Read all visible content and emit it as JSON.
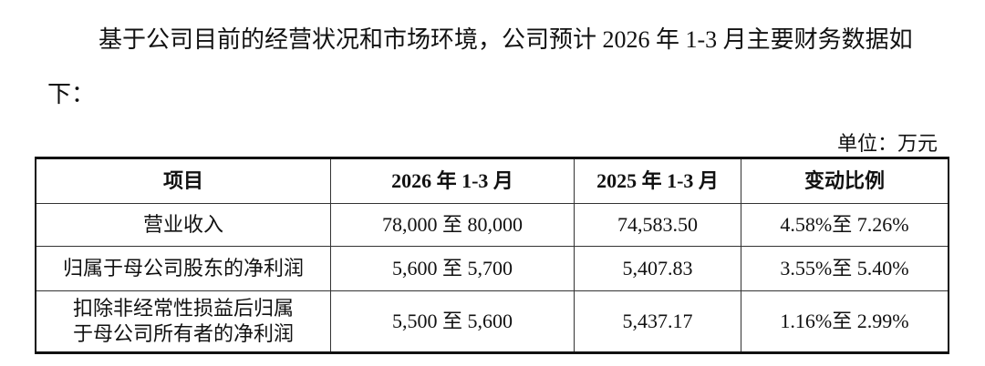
{
  "paragraph": "基于公司目前的经营状况和市场环境，公司预计 2026 年 1-3 月主要财务数据如下：",
  "unit": "单位：万元",
  "table": {
    "headers": [
      "项目",
      "2026 年 1-3 月",
      "2025 年 1-3 月",
      "变动比例"
    ],
    "rows": [
      [
        "营业收入",
        "78,000 至 80,000",
        "74,583.50",
        "4.58%至 7.26%"
      ],
      [
        "归属于母公司股东的净利润",
        "5,600 至 5,700",
        "5,407.83",
        "3.55%至 5.40%"
      ],
      [
        "扣除非经常性损益后归属于母公司所有者的净利润",
        "5,500 至 5,600",
        "5,437.17",
        "1.16%至 2.99%"
      ]
    ]
  }
}
